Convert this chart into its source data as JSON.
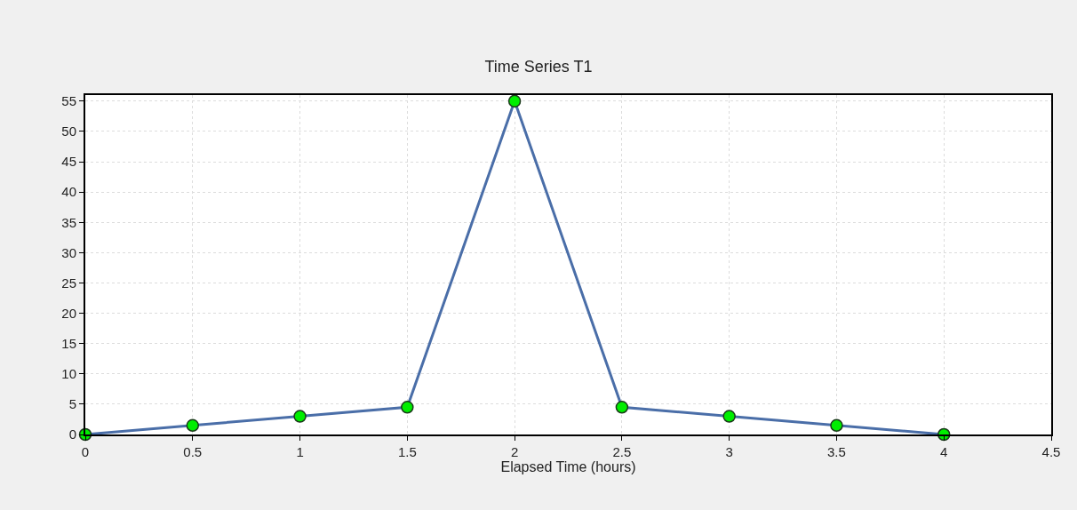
{
  "chart_data": {
    "type": "line",
    "title": "Time Series T1",
    "xlabel": "Elapsed Time (hours)",
    "x": [
      0,
      0.5,
      1,
      1.5,
      2,
      2.5,
      3,
      3.5,
      4
    ],
    "series": [
      {
        "color": "#4a6ea8",
        "values": [
          0,
          1.5,
          3,
          4.5,
          55,
          4.5,
          3,
          1.5,
          0
        ]
      }
    ],
    "xlim": [
      0,
      4.5
    ],
    "xticks": [
      0,
      0.5,
      1,
      1.5,
      2,
      2.5,
      3,
      3.5,
      4,
      4.5
    ],
    "ylim": [
      0,
      56
    ],
    "yticks": [
      0,
      5,
      10,
      15,
      20,
      25,
      30,
      35,
      40,
      45,
      50,
      55
    ],
    "grid": true,
    "marker": "circle",
    "line_style": "solid"
  }
}
